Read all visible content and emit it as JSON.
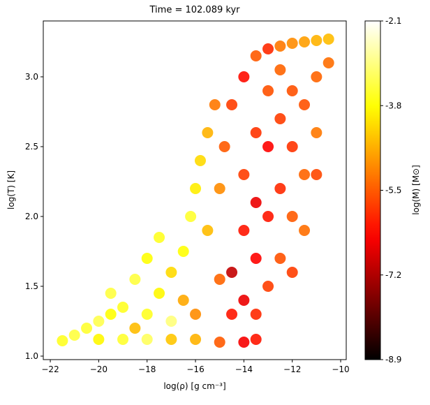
{
  "chart_data": {
    "type": "scatter",
    "title": "Time = 102.089 kyr",
    "x_label": "log(ρ) [g cm⁻³]",
    "y_label": "log(T) [K]",
    "colorbar_label": "log(M) [M⊙]",
    "colormap": "hot",
    "xlim": [
      -22.29,
      -9.77
    ],
    "ylim": [
      0.975,
      3.4
    ],
    "clim": [
      -8.9,
      -2.1
    ],
    "xticks": [
      {
        "value": -22,
        "label": "−22"
      },
      {
        "value": -20,
        "label": "−20"
      },
      {
        "value": -18,
        "label": "−18"
      },
      {
        "value": -16,
        "label": "−16"
      },
      {
        "value": -14,
        "label": "−14"
      },
      {
        "value": -12,
        "label": "−12"
      },
      {
        "value": -10,
        "label": "−10"
      }
    ],
    "yticks": [
      {
        "value": 1,
        "label": "1.0"
      },
      1.5,
      {
        "value": 2,
        "label": "2.0"
      },
      2.5,
      {
        "value": 3,
        "label": "3.0"
      }
    ],
    "cticks": [
      -8.9,
      -7.2,
      -5.5,
      -3.8,
      -2.1
    ],
    "x": [
      -21.5,
      -21,
      -20.5,
      -20,
      -19.5,
      -19,
      -20,
      -19,
      -18,
      -17,
      -16,
      -15,
      -14,
      -13.5,
      -18.5,
      -18,
      -17.5,
      -18.5,
      -18,
      -17.5,
      -17,
      -16.5,
      -16,
      -16.5,
      -16.2,
      -16,
      -15.8,
      -15.5,
      -15.2,
      -15,
      -15.5,
      -15,
      -14.8,
      -14.5,
      -14,
      -13.5,
      -13,
      -12.5,
      -12,
      -11.5,
      -11,
      -10.5,
      -14.5,
      -14.5,
      -14,
      -14,
      -14,
      -13.5,
      -13.5,
      -13.5,
      -13.5,
      -13,
      -13,
      -13,
      -13,
      -12.5,
      -12.5,
      -12.5,
      -12.5,
      -12,
      -12,
      -12,
      -11.5,
      -11.5,
      -11,
      -11,
      -10.5,
      -11,
      -12,
      -11.5,
      -17,
      -19.5
    ],
    "values": [
      1.11,
      1.15,
      1.2,
      1.25,
      1.3,
      1.35,
      1.12,
      1.12,
      1.12,
      1.12,
      1.12,
      1.1,
      1.1,
      1.12,
      1.2,
      1.3,
      1.45,
      1.55,
      1.7,
      1.85,
      1.6,
      1.4,
      1.3,
      1.75,
      2.0,
      2.2,
      2.4,
      2.6,
      2.8,
      1.55,
      1.9,
      2.2,
      2.5,
      2.8,
      3.0,
      3.15,
      3.2,
      3.22,
      3.24,
      3.25,
      3.26,
      3.27,
      1.3,
      1.6,
      1.4,
      1.9,
      2.3,
      1.3,
      1.7,
      2.1,
      2.6,
      1.5,
      2.0,
      2.5,
      2.9,
      1.7,
      2.2,
      2.7,
      3.05,
      2.0,
      2.5,
      2.9,
      2.3,
      2.8,
      2.6,
      3.0,
      3.1,
      2.3,
      1.6,
      1.9,
      1.25,
      1.45
    ],
    "color_values": [
      -3.6,
      -3.4,
      -3.5,
      -3.3,
      -3.8,
      -3.6,
      -3.9,
      -3.5,
      -3.2,
      -4.4,
      -4.6,
      -5.5,
      -6.5,
      -6.2,
      -4.5,
      -3.6,
      -3.9,
      -3.4,
      -3.8,
      -3.6,
      -4.2,
      -4.7,
      -5.0,
      -3.8,
      -3.5,
      -4.0,
      -4.2,
      -4.6,
      -5.2,
      -5.4,
      -4.5,
      -5.0,
      -5.5,
      -5.8,
      -6.3,
      -5.5,
      -6.0,
      -5.2,
      -5.0,
      -4.8,
      -4.6,
      -4.5,
      -6.2,
      -7.0,
      -6.6,
      -6.2,
      -5.8,
      -6.0,
      -6.4,
      -6.6,
      -5.9,
      -5.8,
      -6.2,
      -6.4,
      -5.6,
      -5.6,
      -6.0,
      -5.8,
      -5.4,
      -5.5,
      -5.9,
      -5.6,
      -5.4,
      -5.6,
      -5.2,
      -5.4,
      -5.3,
      -5.7,
      -5.8,
      -5.3,
      -3.0,
      -3.4
    ]
  }
}
